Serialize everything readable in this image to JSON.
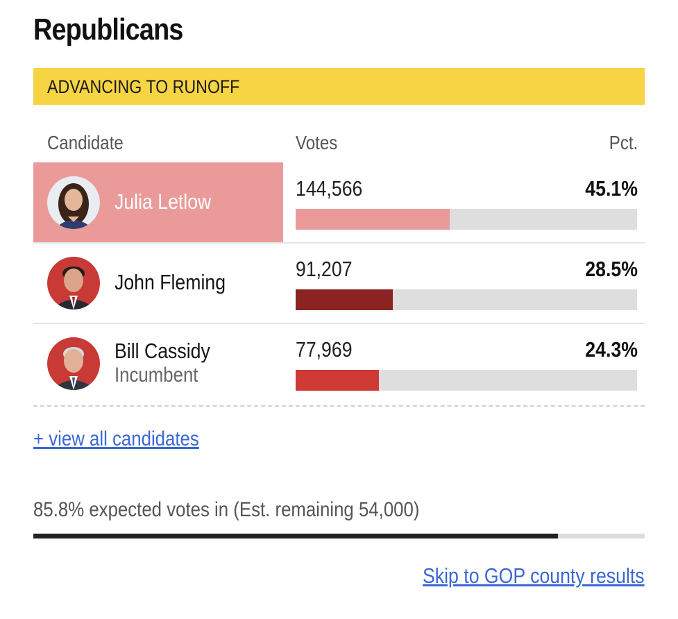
{
  "section_title": "Republicans",
  "banner": {
    "label": "ADVANCING TO RUNOFF",
    "color": "#f6d443"
  },
  "columns": {
    "candidate": "Candidate",
    "votes": "Votes",
    "pct": "Pct."
  },
  "candidates": [
    {
      "name": "Julia Letlow",
      "sub": "",
      "votes": "144,566",
      "pct": "45.1%",
      "pct_value": 45.1,
      "bar_color": "#eb9a9a",
      "leading": true,
      "avatar_bg": "#e9ecf1"
    },
    {
      "name": "John Fleming",
      "sub": "",
      "votes": "91,207",
      "pct": "28.5%",
      "pct_value": 28.5,
      "bar_color": "#8b2323",
      "leading": false,
      "avatar_bg": "#c83a36"
    },
    {
      "name": "Bill Cassidy",
      "sub": "Incumbent",
      "votes": "77,969",
      "pct": "24.3%",
      "pct_value": 24.3,
      "bar_color": "#d03a34",
      "leading": false,
      "avatar_bg": "#c83a36"
    }
  ],
  "view_all_label": "+ view all candidates",
  "expected_text": "85.8% expected votes in (Est. remaining 54,000)",
  "expected_value": 85.8,
  "skip_link": "Skip to GOP county results",
  "link_color": "#3a67d6"
}
